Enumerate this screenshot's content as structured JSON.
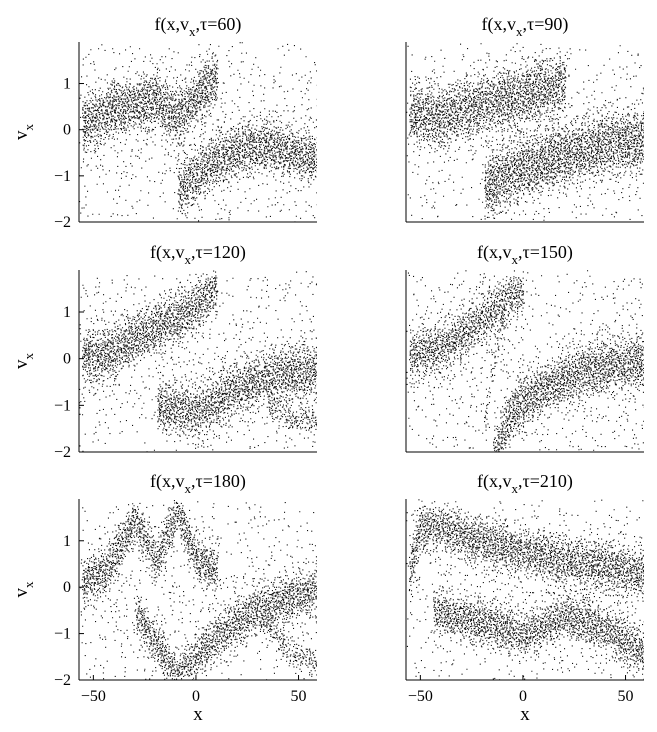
{
  "chart_data": [
    {
      "type": "heatmap",
      "title": "f(x,v_x,τ=60)",
      "title_parts": [
        "f(x,v",
        "x",
        ",τ=60)"
      ],
      "xlabel": "",
      "ylabel": "v_x",
      "ylabel_parts": [
        "v",
        "x"
      ],
      "xlim": [
        -57,
        59
      ],
      "ylim": [
        -2,
        1.9
      ],
      "xticks": [],
      "yticks": [
        -2,
        -1,
        0,
        1
      ],
      "grid": false
    },
    {
      "type": "heatmap",
      "title": "f(x,v_x,τ=90)",
      "title_parts": [
        "f(x,v",
        "x",
        ",τ=90)"
      ],
      "xlabel": "",
      "ylabel": "",
      "xlim": [
        -57,
        59
      ],
      "ylim": [
        -2,
        1.9
      ],
      "xticks": [],
      "yticks": [],
      "grid": false
    },
    {
      "type": "heatmap",
      "title": "f(x,v_x,τ=120)",
      "title_parts": [
        "f(x,v",
        "x",
        ",τ=120)"
      ],
      "xlabel": "",
      "ylabel": "v_x",
      "ylabel_parts": [
        "v",
        "x"
      ],
      "xlim": [
        -57,
        59
      ],
      "ylim": [
        -2,
        1.9
      ],
      "xticks": [],
      "yticks": [
        -2,
        -1,
        0,
        1
      ],
      "grid": false
    },
    {
      "type": "heatmap",
      "title": "f(x,v_x,τ=150)",
      "title_parts": [
        "f(x,v",
        "x",
        ",τ=150)"
      ],
      "xlabel": "",
      "ylabel": "",
      "xlim": [
        -57,
        59
      ],
      "ylim": [
        -2,
        1.9
      ],
      "xticks": [],
      "yticks": [],
      "grid": false
    },
    {
      "type": "heatmap",
      "title": "f(x,v_x,τ=180)",
      "title_parts": [
        "f(x,v",
        "x",
        ",τ=180)"
      ],
      "xlabel": "x",
      "ylabel": "v_x",
      "ylabel_parts": [
        "v",
        "x"
      ],
      "xlim": [
        -57,
        59
      ],
      "ylim": [
        -2,
        1.9
      ],
      "xticks": [
        -50,
        0,
        50
      ],
      "yticks": [
        -2,
        -1,
        0,
        1
      ],
      "grid": false
    },
    {
      "type": "heatmap",
      "title": "f(x,v_x,τ=210)",
      "title_parts": [
        "f(x,v",
        "x",
        ",τ=210)"
      ],
      "xlabel": "x",
      "ylabel": "",
      "xlim": [
        -57,
        59
      ],
      "ylim": [
        -2,
        1.9
      ],
      "xticks": [
        -50,
        0,
        50
      ],
      "yticks": [],
      "grid": false
    }
  ]
}
